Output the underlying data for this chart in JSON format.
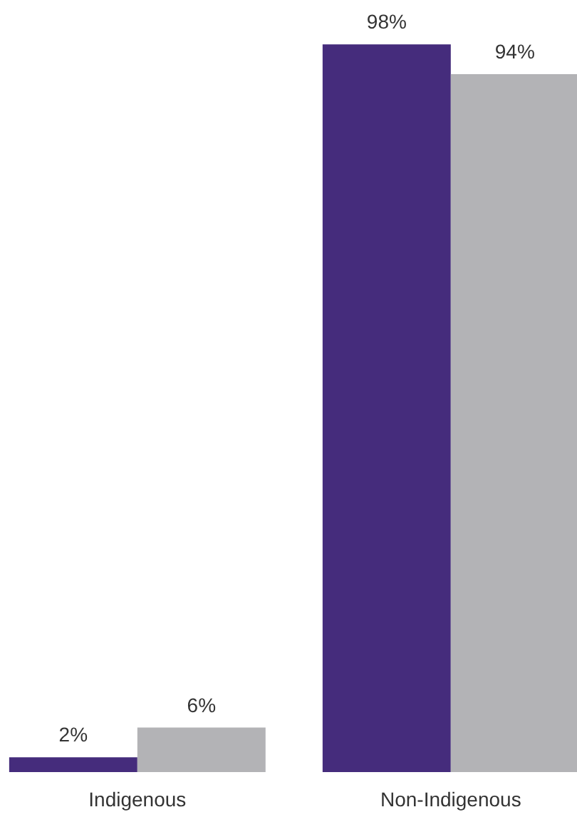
{
  "chart_data": {
    "type": "bar",
    "categories": [
      "Indigenous",
      "Non-Indigenous"
    ],
    "series": [
      {
        "color": "#452c7c",
        "values": [
          2,
          98
        ],
        "value_labels": [
          "2%",
          "98%"
        ]
      },
      {
        "color": "#b3b3b6",
        "values": [
          6,
          94
        ],
        "value_labels": [
          "6%",
          "94%"
        ]
      }
    ],
    "grid": false
  }
}
